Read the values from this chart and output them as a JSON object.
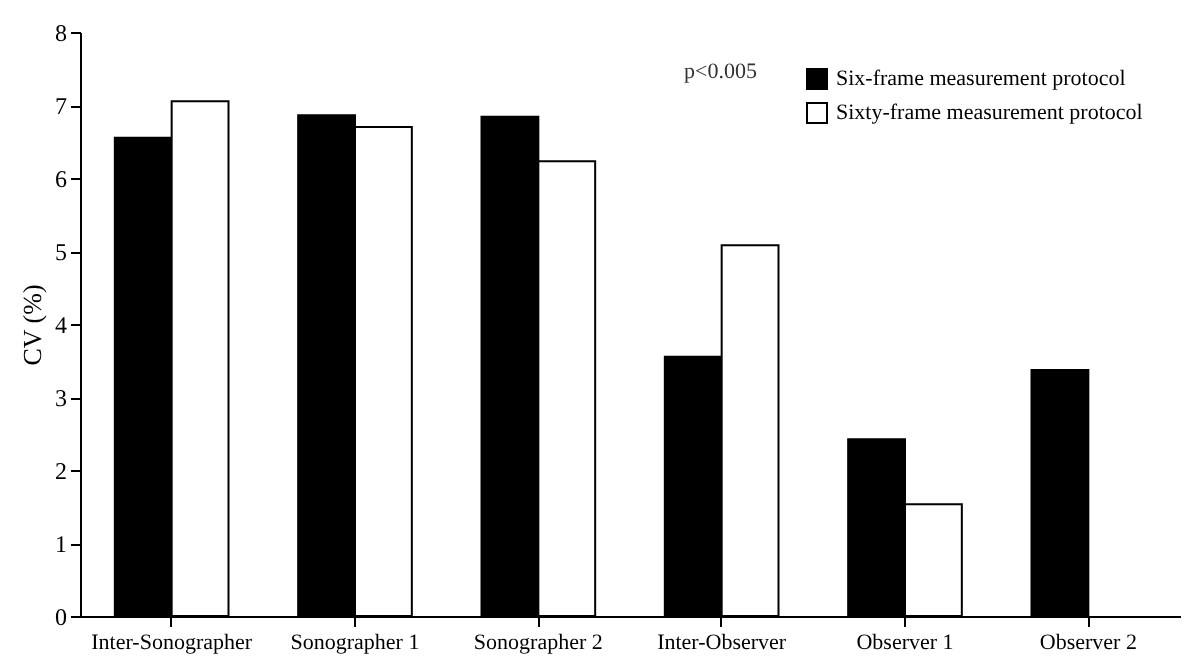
{
  "chart_data": {
    "type": "bar",
    "ylabel": "CV (%)",
    "categories": [
      "Inter-Sonographer",
      "Sonographer 1",
      "Sonographer 2",
      "Inter-Observer",
      "Observer 1",
      "Observer 2"
    ],
    "series": [
      {
        "name": "Six-frame measurement protocol",
        "color": "#000000",
        "values": [
          6.55,
          6.86,
          6.84,
          3.55,
          2.42,
          3.37
        ]
      },
      {
        "name": "Sixty-frame measurement protocol",
        "color": "#ffffff",
        "values": [
          7.05,
          6.7,
          6.23,
          5.08,
          1.53,
          null
        ]
      }
    ],
    "ylim": [
      0,
      8
    ],
    "yticks": [
      0,
      1,
      2,
      3,
      4,
      5,
      6,
      7,
      8
    ],
    "grid": false,
    "legend": "top right",
    "annotations": [
      "p<0.005"
    ]
  }
}
